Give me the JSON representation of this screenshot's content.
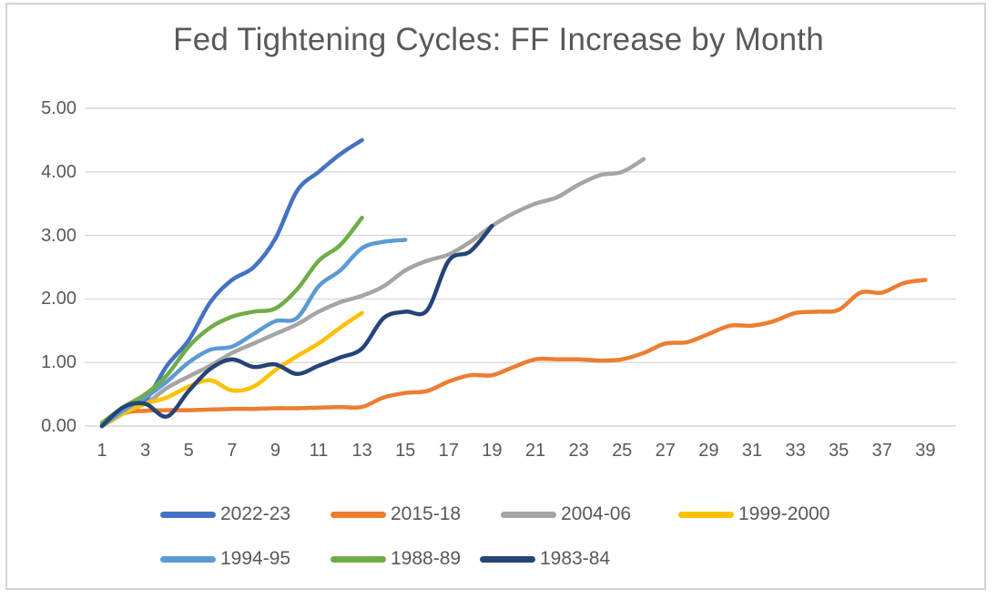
{
  "chart_data": {
    "type": "line",
    "title": "Fed Tightening Cycles: FF Increase by Month",
    "xlabel": "",
    "ylabel": "",
    "x_ticks": [
      1,
      3,
      5,
      7,
      9,
      11,
      13,
      15,
      17,
      19,
      21,
      23,
      25,
      27,
      29,
      31,
      33,
      35,
      37,
      39
    ],
    "y_ticks": [
      "0.00",
      "1.00",
      "2.00",
      "3.00",
      "4.00",
      "5.00"
    ],
    "xlim": [
      1,
      40
    ],
    "ylim": [
      0,
      5
    ],
    "grid": "horizontal-only",
    "legend_position": "bottom",
    "series": [
      {
        "name": "2022-23",
        "color": "#4472C4",
        "x_start": 1,
        "values": [
          0,
          0.2,
          0.4,
          0.95,
          1.35,
          1.95,
          2.3,
          2.5,
          2.95,
          3.7,
          4.0,
          4.28,
          4.5
        ]
      },
      {
        "name": "2015-18",
        "color": "#ED7D31",
        "x_start": 1,
        "values": [
          0,
          0.2,
          0.24,
          0.25,
          0.25,
          0.26,
          0.27,
          0.27,
          0.28,
          0.28,
          0.29,
          0.3,
          0.3,
          0.45,
          0.52,
          0.55,
          0.7,
          0.8,
          0.8,
          0.93,
          1.05,
          1.05,
          1.05,
          1.03,
          1.05,
          1.15,
          1.3,
          1.32,
          1.45,
          1.58,
          1.58,
          1.65,
          1.78,
          1.8,
          1.83,
          2.1,
          2.1,
          2.25,
          2.3
        ]
      },
      {
        "name": "2004-06",
        "color": "#A5A5A5",
        "x_start": 1,
        "values": [
          0,
          0.25,
          0.35,
          0.6,
          0.78,
          0.95,
          1.15,
          1.3,
          1.45,
          1.6,
          1.8,
          1.95,
          2.05,
          2.2,
          2.45,
          2.6,
          2.7,
          2.9,
          3.15,
          3.35,
          3.5,
          3.6,
          3.8,
          3.95,
          4.0,
          4.2
        ]
      },
      {
        "name": "1999-2000",
        "color": "#FFC000",
        "x_start": 1,
        "values": [
          0,
          0.2,
          0.35,
          0.45,
          0.62,
          0.72,
          0.56,
          0.62,
          0.88,
          1.1,
          1.3,
          1.55,
          1.78
        ]
      },
      {
        "name": "1994-95",
        "color": "#5B9BD5",
        "x_start": 1,
        "values": [
          0,
          0.25,
          0.45,
          0.7,
          1.0,
          1.2,
          1.25,
          1.45,
          1.65,
          1.7,
          2.2,
          2.45,
          2.8,
          2.9,
          2.93
        ]
      },
      {
        "name": "1988-89",
        "color": "#70AD47",
        "x_start": 1,
        "values": [
          0.05,
          0.3,
          0.5,
          0.8,
          1.25,
          1.55,
          1.72,
          1.8,
          1.85,
          2.15,
          2.6,
          2.85,
          3.28
        ]
      },
      {
        "name": "1983-84",
        "color": "#264478",
        "x_start": 1,
        "values": [
          0,
          0.3,
          0.35,
          0.15,
          0.55,
          0.9,
          1.05,
          0.93,
          0.97,
          0.82,
          0.95,
          1.08,
          1.22,
          1.7,
          1.8,
          1.82,
          2.6,
          2.75,
          3.15
        ]
      }
    ]
  },
  "legend": {
    "rows": [
      [
        0,
        1,
        2,
        3
      ],
      [
        4,
        5,
        6
      ]
    ]
  },
  "colors": {
    "text": "#595959",
    "gridline": "#D9D9D9",
    "frame_border": "#D2D2D2",
    "background": "#FFFFFF"
  }
}
